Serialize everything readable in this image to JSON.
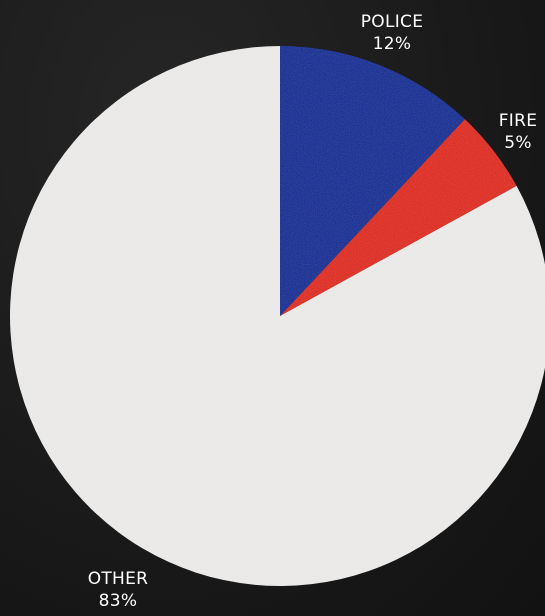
{
  "chart_data": {
    "type": "pie",
    "title": "",
    "start_angle_deg": 0,
    "direction": "clockwise",
    "slices": [
      {
        "label": "POLICE",
        "value": 12,
        "display": "12%",
        "color": "#0a2f96"
      },
      {
        "label": "FIRE",
        "value": 5,
        "display": "5%",
        "color": "#e02a1e"
      },
      {
        "label": "OTHER",
        "value": 83,
        "display": "83%",
        "color": "#ecebea"
      }
    ],
    "legend": "none",
    "label_placement": "outside"
  }
}
